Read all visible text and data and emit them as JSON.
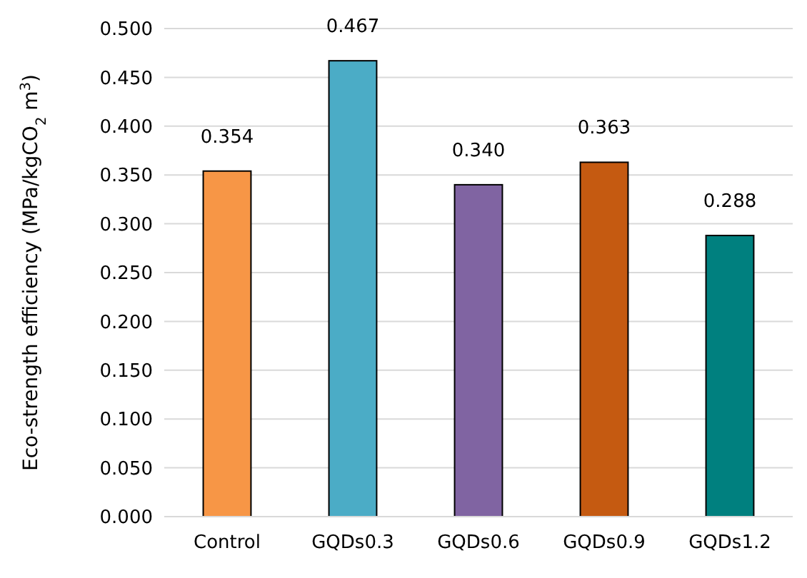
{
  "chart_data": {
    "type": "bar",
    "ylabel": "Eco-strength efficiency (MPa/kgCO$_{2}$ m$^{3}$)",
    "categories": [
      "Control",
      "GQDs0.3",
      "GQDs0.6",
      "GQDs0.9",
      "GQDs1.2"
    ],
    "values": [
      0.354,
      0.467,
      0.34,
      0.363,
      0.288
    ],
    "colors": [
      "#f79646",
      "#4bacc6",
      "#8064a2",
      "#c55a11",
      "#00807f"
    ],
    "value_labels": [
      "0.354",
      "0.467",
      "0.340",
      "0.363",
      "0.288"
    ],
    "ylim": [
      0,
      0.5
    ],
    "yticks": [
      {
        "value": 0,
        "label": "0.000"
      },
      {
        "value": 0.05,
        "label": "0.050"
      },
      {
        "value": 0.1,
        "label": "0.100"
      },
      {
        "value": 0.15,
        "label": "0.150"
      },
      {
        "value": 0.2,
        "label": "0.200"
      },
      {
        "value": 0.25,
        "label": "0.250"
      },
      {
        "value": 0.3,
        "label": "0.300"
      },
      {
        "value": 0.35,
        "label": "0.350"
      },
      {
        "value": 0.4,
        "label": "0.400"
      },
      {
        "value": 0.45,
        "label": "0.450"
      },
      {
        "value": 0.5,
        "label": "0.500"
      }
    ],
    "grid": "y"
  }
}
